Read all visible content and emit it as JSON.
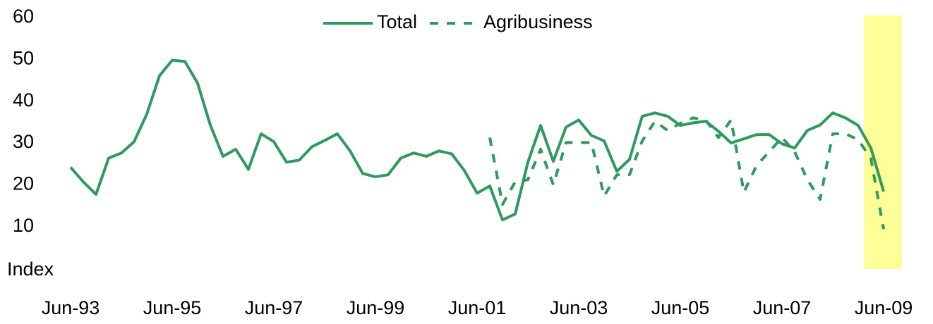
{
  "chart_data": {
    "type": "line",
    "y_label": "Index",
    "ylim": [
      0,
      60
    ],
    "yticks": [
      10,
      20,
      30,
      40,
      50,
      60
    ],
    "legend": "top",
    "categories": [
      "Jun-93",
      null,
      null,
      null,
      null,
      null,
      null,
      null,
      "Jun-95",
      null,
      null,
      null,
      null,
      null,
      null,
      null,
      "Jun-97",
      null,
      null,
      null,
      null,
      null,
      null,
      null,
      "Jun-99",
      null,
      null,
      null,
      null,
      null,
      null,
      null,
      "Jun-01",
      null,
      null,
      null,
      null,
      null,
      null,
      null,
      "Jun-03",
      null,
      null,
      null,
      null,
      null,
      null,
      null,
      "Jun-05",
      null,
      null,
      null,
      null,
      null,
      null,
      null,
      "Jun-07",
      null,
      null,
      null,
      null,
      null,
      null,
      null,
      "Jun-09"
    ],
    "series": [
      {
        "name": "Total",
        "color": "#2e9a5e",
        "style": "solid",
        "values": [
          24.2,
          20.7,
          17.7,
          26.4,
          27.6,
          30.3,
          36.9,
          46.1,
          49.8,
          49.5,
          44.3,
          34.3,
          26.8,
          28.5,
          23.7,
          32.2,
          30.3,
          25.4,
          25.9,
          29.1,
          30.6,
          32.2,
          28.1,
          22.7,
          21.9,
          22.4,
          26.4,
          27.6,
          26.8,
          28.1,
          27.4,
          23.4,
          18.0,
          19.7,
          11.6,
          13.0,
          25.4,
          34.2,
          25.6,
          33.8,
          35.5,
          31.8,
          30.5,
          23.2,
          26.1,
          36.4,
          37.2,
          36.4,
          34.2,
          34.8,
          35.2,
          32.8,
          30.0,
          31.0,
          32.0,
          32.0,
          29.8,
          28.8,
          33.0,
          34.3,
          37.2,
          36.0,
          34.2,
          28.8,
          18.4
        ]
      },
      {
        "name": "Agribusiness",
        "color": "#2e9a5e",
        "style": "dashed",
        "values": [
          null,
          null,
          null,
          null,
          null,
          null,
          null,
          null,
          null,
          null,
          null,
          null,
          null,
          null,
          null,
          null,
          null,
          null,
          null,
          null,
          null,
          null,
          null,
          null,
          null,
          null,
          null,
          null,
          null,
          null,
          null,
          null,
          null,
          31.3,
          15.3,
          20.7,
          21.2,
          28.5,
          20.0,
          30.1,
          30.1,
          30.1,
          17.3,
          22.4,
          22.4,
          30.5,
          35.2,
          33.0,
          34.7,
          36.0,
          35.5,
          31.3,
          35.5,
          18.2,
          24.6,
          27.9,
          31.3,
          27.9,
          21.2,
          16.5,
          32.2,
          32.2,
          30.8,
          26.3,
          9.4
        ]
      }
    ]
  }
}
